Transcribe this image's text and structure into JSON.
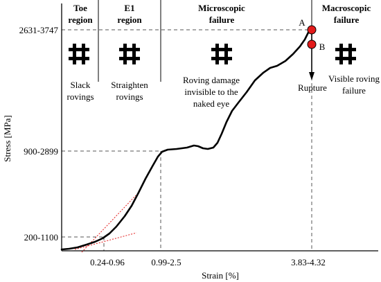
{
  "chart_data": {
    "type": "line",
    "xlabel": "Strain [%]",
    "ylabel": "Stress [MPa]",
    "x_ticks": [
      "0.24-0.96",
      "0.99-2.5",
      "3.83-4.32"
    ],
    "y_ticks": [
      "2631-3747",
      "900-2899",
      "200-1100"
    ],
    "regions": [
      {
        "title": [
          "Toe",
          "region"
        ],
        "icon": "fabric-weave-icon",
        "description": [
          "Slack",
          "rovings"
        ]
      },
      {
        "title": [
          "E1",
          "region"
        ],
        "icon": "fabric-weave-icon",
        "description": [
          "Straighten",
          "rovings"
        ]
      },
      {
        "title": [
          "Microscopic",
          "failure"
        ],
        "icon": "fabric-weave-icon",
        "description": [
          "Roving damage",
          "invisible to the",
          "naked eye"
        ]
      },
      {
        "title": [
          "Macroscopic",
          "failure"
        ],
        "icon": "fabric-weave-icon",
        "description": [
          "Visible roving",
          "failure"
        ]
      }
    ],
    "points": [
      {
        "label": "A",
        "color": "#e31b1b"
      },
      {
        "label": "B",
        "color": "#e31b1b"
      }
    ],
    "annotation": "Rupture",
    "curve_color": "#000000",
    "tangent_color": "#e31b1b"
  }
}
